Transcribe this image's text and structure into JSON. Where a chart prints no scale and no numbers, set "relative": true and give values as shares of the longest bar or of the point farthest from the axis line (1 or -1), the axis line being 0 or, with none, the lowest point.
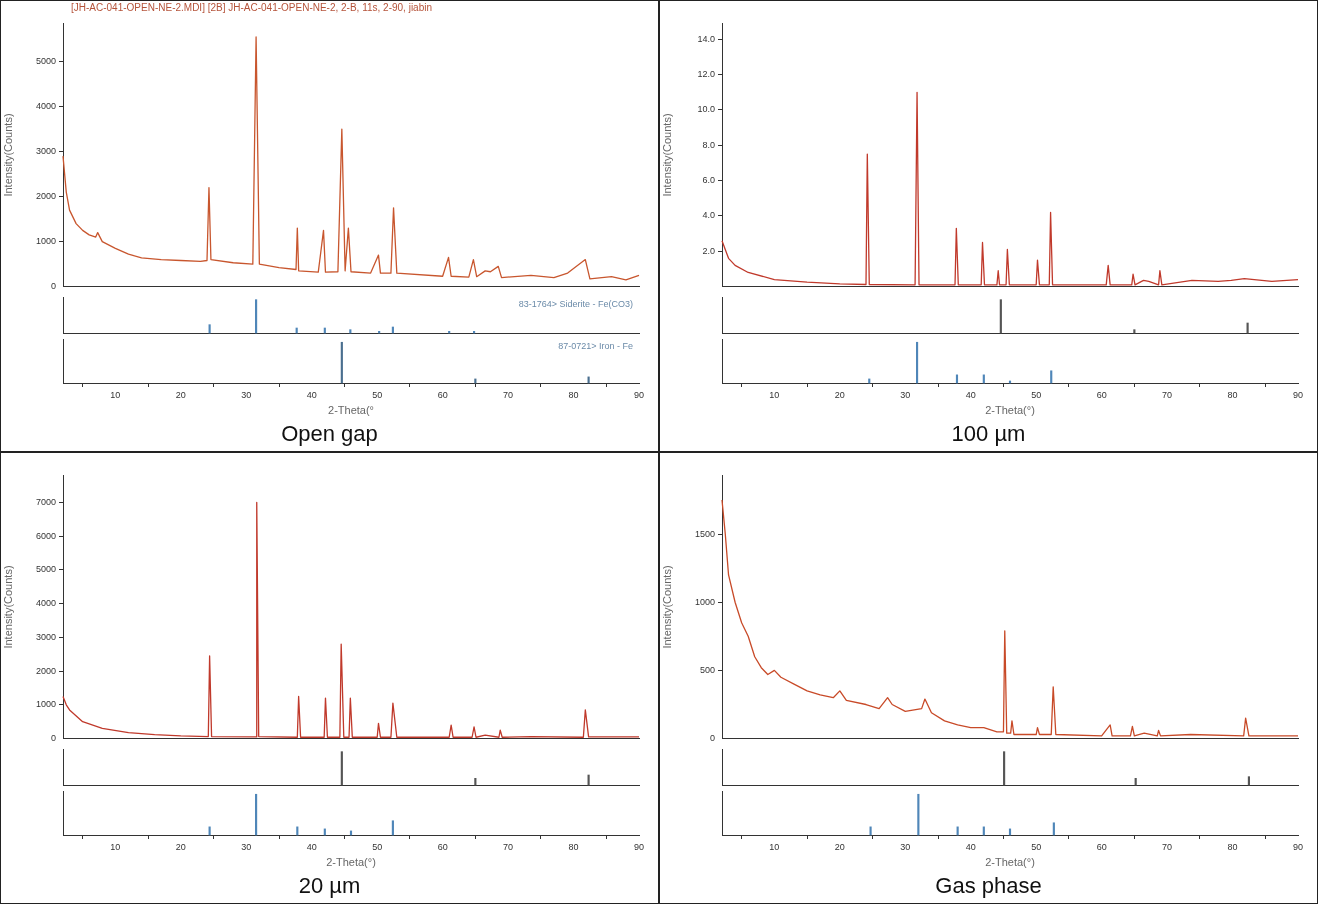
{
  "chart_data": [
    {
      "type": "line",
      "title": "Open gap",
      "subtitle": "[JH-AC-041-OPEN-NE-2.MDI] [2B] JH-AC-041-OPEN-NE-2, 2-B, 11s, 2-90, jiabin",
      "ylabel": "Intensity(Counts)",
      "tick_labels": "y",
      "xlim": [
        2,
        90
      ],
      "xticks": [
        10,
        20,
        30,
        40,
        50,
        60,
        70,
        80,
        90
      ],
      "ylim": [
        0,
        5850
      ],
      "yticks": [
        0,
        1000,
        2000,
        3000,
        4000,
        5000
      ],
      "series": [
        {
          "color": "#c8562e",
          "x": [
            2,
            2.5,
            3,
            4,
            5,
            6,
            7,
            7.3,
            8,
            10,
            12,
            14,
            17,
            20,
            23,
            24,
            24.3,
            24.6,
            28,
            31,
            31.5,
            32,
            35,
            37.6,
            37.8,
            38,
            41,
            41.8,
            42.1,
            44,
            44.6,
            45.1,
            45.6,
            46,
            49,
            50.2,
            50.5,
            52.1,
            52.5,
            53,
            60,
            60.9,
            61.3,
            64,
            64.7,
            65.2,
            66.5,
            67.3,
            68.5,
            69,
            73.5,
            77,
            79.1,
            81.8,
            82.5,
            85.8,
            88,
            90
          ],
          "values": [
            2900,
            2100,
            1700,
            1400,
            1250,
            1150,
            1100,
            1200,
            1000,
            850,
            720,
            640,
            600,
            580,
            560,
            580,
            2200,
            600,
            530,
            500,
            5550,
            500,
            420,
            380,
            1300,
            350,
            320,
            1250,
            320,
            330,
            3500,
            350,
            1300,
            330,
            300,
            700,
            300,
            300,
            1750,
            300,
            230,
            650,
            230,
            210,
            600,
            220,
            350,
            330,
            450,
            200,
            250,
            200,
            300,
            600,
            170,
            220,
            150,
            250
          ]
        }
      ]
    },
    {
      "type": "bar",
      "relative": true,
      "tick_labels": false,
      "xlim": [
        2,
        90
      ],
      "xticks": [
        10,
        20,
        30,
        40,
        50,
        60,
        70,
        80,
        90
      ],
      "annotations": [
        "83-1764> Siderite - Fe(CO3)"
      ],
      "series": [
        {
          "color": "#4f86b8",
          "x": [
            24.4,
            31.5,
            37.7,
            42,
            45.9,
            50.3,
            52.4,
            61,
            64.8
          ],
          "values": [
            0.25,
            1,
            0.15,
            0.15,
            0.1,
            0.05,
            0.18,
            0.05,
            0.05
          ]
        }
      ]
    },
    {
      "type": "bar",
      "relative": true,
      "tick_labels": "x",
      "xlabel": "2-Theta(°",
      "xlim": [
        2,
        90
      ],
      "xticks": [
        10,
        20,
        30,
        40,
        50,
        60,
        70,
        80,
        90
      ],
      "annotations": [
        "87-0721> Iron - Fe"
      ],
      "series": [
        {
          "color": "#4a6f8f",
          "x": [
            44.6,
            65,
            82.3
          ],
          "values": [
            1,
            0.1,
            0.15
          ]
        }
      ]
    },
    {
      "type": "line",
      "title": "100 µm",
      "ylabel": "Intensity(Counts)",
      "tick_labels": "y",
      "xlim": [
        2,
        90
      ],
      "xticks": [
        10,
        20,
        30,
        40,
        50,
        60,
        70,
        80,
        90
      ],
      "ylim": [
        0,
        14.9
      ],
      "yticks": [
        {
          "value": 0,
          "label": null
        },
        {
          "value": 2,
          "label": "2.0"
        },
        {
          "value": 4,
          "label": "4.0"
        },
        {
          "value": 6,
          "label": "6.0"
        },
        {
          "value": 8,
          "label": "8.0"
        },
        {
          "value": 10,
          "label": "10.0"
        },
        {
          "value": 12,
          "label": "12.0"
        },
        {
          "value": 14,
          "label": "14.0"
        }
      ],
      "series": [
        {
          "color": "#c0392b",
          "x": [
            2,
            3,
            4,
            6,
            10,
            15,
            20,
            24,
            24.2,
            24.5,
            31.5,
            31.8,
            32.1,
            37.6,
            37.8,
            38.1,
            41.6,
            41.8,
            42.1,
            44,
            44.2,
            44.4,
            45.4,
            45.6,
            45.9,
            50,
            50.2,
            50.5,
            52,
            52.2,
            52.5,
            60.7,
            61,
            61.3,
            64.6,
            64.8,
            65.1,
            66.4,
            67.2,
            68.7,
            68.9,
            69.2,
            73.8,
            77.8,
            79.8,
            81.8,
            86,
            90
          ],
          "values": [
            2.6,
            1.6,
            1.2,
            0.8,
            0.4,
            0.25,
            0.15,
            0.12,
            7.5,
            0.12,
            0.1,
            11,
            0.1,
            0.1,
            3.3,
            0.1,
            0.1,
            2.5,
            0.1,
            0.1,
            0.9,
            0.1,
            0.1,
            2.1,
            0.1,
            0.1,
            1.5,
            0.1,
            0.1,
            4.2,
            0.1,
            0.1,
            1.2,
            0.1,
            0.1,
            0.7,
            0.1,
            0.35,
            0.3,
            0.1,
            0.9,
            0.1,
            0.35,
            0.3,
            0.35,
            0.45,
            0.3,
            0.4
          ]
        }
      ]
    },
    {
      "type": "bar",
      "relative": true,
      "tick_labels": false,
      "xlim": [
        2,
        90
      ],
      "xticks": [
        10,
        20,
        30,
        40,
        50,
        60,
        70,
        80,
        90
      ],
      "series": [
        {
          "color": "#555555",
          "x": [
            44.6,
            65,
            82.3
          ],
          "values": [
            1,
            0.1,
            0.3
          ]
        }
      ]
    },
    {
      "type": "bar",
      "relative": true,
      "tick_labels": "x",
      "xlabel": "2-Theta(°)",
      "xlim": [
        2,
        90
      ],
      "xticks": [
        10,
        20,
        30,
        40,
        50,
        60,
        70,
        80,
        90
      ],
      "series": [
        {
          "color": "#4f86b8",
          "x": [
            24.5,
            31.8,
            37.9,
            42,
            46,
            52.3
          ],
          "values": [
            0.1,
            1,
            0.2,
            0.2,
            0.05,
            0.3
          ]
        }
      ]
    },
    {
      "type": "line",
      "title": "20 µm",
      "ylabel": "Intensity(Counts)",
      "tick_labels": "y",
      "xlim": [
        2,
        90
      ],
      "xticks": [
        10,
        20,
        30,
        40,
        50,
        60,
        70,
        80,
        90
      ],
      "ylim": [
        0,
        7800
      ],
      "yticks": [
        0,
        1000,
        2000,
        3000,
        4000,
        5000,
        6000,
        7000
      ],
      "series": [
        {
          "color": "#c0392b",
          "x": [
            2,
            2.5,
            3,
            5,
            8,
            12,
            16,
            20,
            24.2,
            24.4,
            24.7,
            31.5,
            31.6,
            31.9,
            37.8,
            38,
            38.3,
            41.9,
            42.1,
            42.4,
            44.3,
            44.5,
            44.9,
            45.7,
            45.9,
            46.2,
            50,
            50.2,
            50.5,
            52.1,
            52.4,
            53,
            61,
            61.3,
            61.6,
            64.5,
            64.8,
            65.1,
            66.5,
            68.6,
            68.8,
            69.1,
            73.5,
            81.5,
            81.8,
            82.3,
            90
          ],
          "values": [
            1250,
            1000,
            850,
            500,
            300,
            180,
            120,
            80,
            60,
            2450,
            60,
            50,
            7000,
            60,
            40,
            1250,
            40,
            40,
            1200,
            40,
            40,
            2800,
            40,
            40,
            1200,
            40,
            40,
            450,
            40,
            40,
            1050,
            40,
            40,
            400,
            40,
            40,
            350,
            40,
            100,
            40,
            250,
            40,
            60,
            40,
            850,
            50,
            50
          ]
        }
      ]
    },
    {
      "type": "bar",
      "relative": true,
      "tick_labels": false,
      "xlim": [
        2,
        90
      ],
      "xticks": [
        10,
        20,
        30,
        40,
        50,
        60,
        70,
        80,
        90
      ],
      "series": [
        {
          "color": "#555555",
          "x": [
            44.6,
            65,
            82.3
          ],
          "values": [
            1,
            0.2,
            0.3
          ]
        }
      ]
    },
    {
      "type": "bar",
      "relative": true,
      "tick_labels": "x",
      "xlabel": "2-Theta(°)",
      "xlim": [
        2,
        90
      ],
      "xticks": [
        10,
        20,
        30,
        40,
        50,
        60,
        70,
        80,
        90
      ],
      "series": [
        {
          "color": "#4f86b8",
          "x": [
            24.4,
            31.5,
            37.8,
            42,
            46,
            52.4
          ],
          "values": [
            0.2,
            1,
            0.2,
            0.15,
            0.1,
            0.35
          ]
        }
      ]
    },
    {
      "type": "line",
      "title": "Gas phase",
      "ylabel": "Intensity(Counts)",
      "tick_labels": "y",
      "xlim": [
        2,
        90
      ],
      "xticks": [
        10,
        20,
        30,
        40,
        50,
        60,
        70,
        80,
        90
      ],
      "ylim": [
        0,
        1930
      ],
      "yticks": [
        0,
        500,
        1000,
        1500
      ],
      "series": [
        {
          "color": "#c84a28",
          "x": [
            2,
            2.5,
            3,
            4,
            5,
            6,
            7,
            8,
            9,
            10,
            11,
            13,
            15,
            17,
            19,
            20,
            21,
            24,
            26,
            27.3,
            28,
            30,
            32.5,
            33,
            34,
            36,
            38,
            40,
            42,
            44,
            45,
            45.2,
            45.5,
            46.1,
            46.3,
            46.6,
            48,
            50,
            50.2,
            50.5,
            52.3,
            52.6,
            53,
            60,
            61.3,
            61.6,
            64.4,
            64.7,
            65,
            66.5,
            68.5,
            68.7,
            69,
            73.6,
            81.7,
            82,
            82.5,
            90
          ],
          "values": [
            1750,
            1500,
            1200,
            1000,
            850,
            750,
            600,
            520,
            470,
            500,
            450,
            400,
            350,
            320,
            300,
            350,
            280,
            250,
            220,
            300,
            250,
            200,
            220,
            290,
            190,
            130,
            100,
            80,
            80,
            50,
            50,
            790,
            40,
            40,
            130,
            30,
            30,
            30,
            80,
            30,
            30,
            380,
            30,
            20,
            100,
            20,
            20,
            90,
            20,
            40,
            20,
            60,
            20,
            30,
            20,
            150,
            20,
            20
          ]
        }
      ]
    },
    {
      "type": "bar",
      "relative": true,
      "tick_labels": false,
      "xlim": [
        2,
        90
      ],
      "xticks": [
        10,
        20,
        30,
        40,
        50,
        60,
        70,
        80,
        90
      ],
      "series": [
        {
          "color": "#555555",
          "x": [
            45.1,
            65.2,
            82.5
          ],
          "values": [
            1,
            0.2,
            0.25
          ]
        }
      ]
    },
    {
      "type": "bar",
      "relative": true,
      "tick_labels": "x",
      "xlabel": "2-Theta(°)",
      "xlim": [
        2,
        90
      ],
      "xticks": [
        10,
        20,
        30,
        40,
        50,
        60,
        70,
        80,
        90
      ],
      "series": [
        {
          "color": "#4f86b8",
          "x": [
            24.7,
            32,
            38,
            42,
            46,
            52.7
          ],
          "values": [
            0.2,
            1,
            0.2,
            0.2,
            0.15,
            0.3
          ]
        }
      ]
    }
  ]
}
